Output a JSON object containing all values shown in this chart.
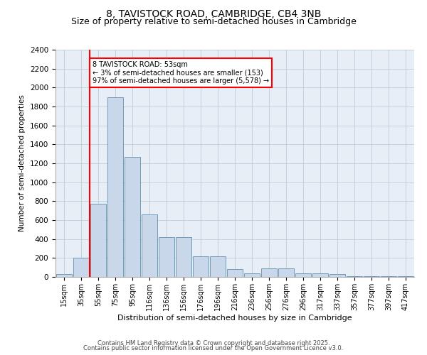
{
  "title": "8, TAVISTOCK ROAD, CAMBRIDGE, CB4 3NB",
  "subtitle": "Size of property relative to semi-detached houses in Cambridge",
  "xlabel": "Distribution of semi-detached houses by size in Cambridge",
  "ylabel": "Number of semi-detached properties",
  "bin_labels": [
    "15sqm",
    "35sqm",
    "55sqm",
    "75sqm",
    "95sqm",
    "116sqm",
    "136sqm",
    "156sqm",
    "176sqm",
    "196sqm",
    "216sqm",
    "236sqm",
    "256sqm",
    "276sqm",
    "296sqm",
    "317sqm",
    "337sqm",
    "357sqm",
    "377sqm",
    "397sqm",
    "417sqm"
  ],
  "bar_values": [
    30,
    200,
    770,
    1900,
    1270,
    660,
    420,
    420,
    215,
    215,
    80,
    40,
    90,
    90,
    40,
    40,
    30,
    10,
    10,
    5,
    5
  ],
  "bar_color": "#c8d8ea",
  "bar_edge_color": "#6090b0",
  "red_line_bin": 2,
  "annotation_text": "8 TAVISTOCK ROAD: 53sqm\n← 3% of semi-detached houses are smaller (153)\n97% of semi-detached houses are larger (5,578) →",
  "annotation_box_color": "white",
  "annotation_box_edge": "red",
  "vline_color": "red",
  "ylim": [
    0,
    2400
  ],
  "yticks": [
    0,
    200,
    400,
    600,
    800,
    1000,
    1200,
    1400,
    1600,
    1800,
    2000,
    2200,
    2400
  ],
  "grid_color": "#c0ccd8",
  "bg_color": "#e8eef5",
  "footer_line1": "Contains HM Land Registry data © Crown copyright and database right 2025.",
  "footer_line2": "Contains public sector information licensed under the Open Government Licence v3.0.",
  "title_fontsize": 10,
  "subtitle_fontsize": 9
}
